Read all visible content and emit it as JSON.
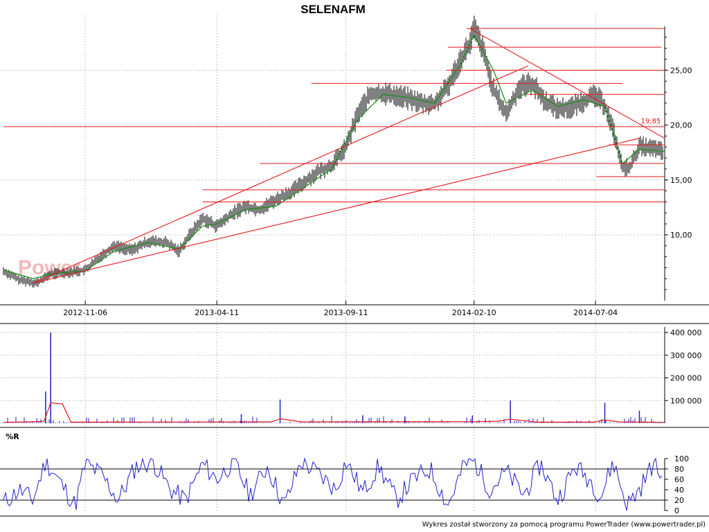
{
  "chart_data": {
    "type": "line",
    "title": "SELENAFM",
    "watermark": "Power",
    "footer": "Wykres został stworzony za pomocą programu PowerTrader (www.powertrader.pl)",
    "colors": {
      "price": "#000000",
      "moving_average": "#1a8c1a",
      "trendline": "#e8141a",
      "volume": "#1f1fbf",
      "volume_average": "#e8141a",
      "williams_r": "#1f1fcc",
      "grid": "#9a9a9a"
    },
    "price": {
      "yticks": [
        "10,00",
        "15,00",
        "20,00",
        "25,00"
      ],
      "ylim": [
        4.0,
        29.0
      ],
      "xticks": [
        "2012-11-06",
        "2013-04-11",
        "2013-09-11",
        "2014-02-10",
        "2014-07-04"
      ],
      "xlim": [
        "2012-08-01",
        "2014-09-24"
      ],
      "grid": true,
      "series": {
        "dates": [
          "2012-08-01",
          "2012-08-20",
          "2012-09-10",
          "2012-09-25",
          "2012-10-05",
          "2012-10-20",
          "2012-11-06",
          "2012-11-25",
          "2012-12-10",
          "2012-12-31",
          "2013-01-20",
          "2013-02-10",
          "2013-02-25",
          "2013-03-10",
          "2013-03-25",
          "2013-04-11",
          "2013-05-01",
          "2013-05-15",
          "2013-06-01",
          "2013-06-20",
          "2013-07-10",
          "2013-07-25",
          "2013-08-10",
          "2013-08-25",
          "2013-09-11",
          "2013-09-25",
          "2013-10-10",
          "2013-10-25",
          "2013-11-10",
          "2013-11-25",
          "2013-12-10",
          "2013-12-25",
          "2014-01-10",
          "2014-01-25",
          "2014-02-05",
          "2014-02-10",
          "2014-02-20",
          "2014-03-05",
          "2014-03-20",
          "2014-04-05",
          "2014-04-20",
          "2014-05-05",
          "2014-05-20",
          "2014-06-05",
          "2014-06-20",
          "2014-07-04",
          "2014-07-15",
          "2014-07-25",
          "2014-08-05",
          "2014-08-15",
          "2014-08-25",
          "2014-09-05",
          "2014-09-15",
          "2014-09-24"
        ],
        "values": [
          6.7,
          5.9,
          5.6,
          6.4,
          6.5,
          6.6,
          6.8,
          8.1,
          9.0,
          8.6,
          9.4,
          9.3,
          8.5,
          10.0,
          11.5,
          10.8,
          12.0,
          12.6,
          12.3,
          13.2,
          14.0,
          14.9,
          15.8,
          16.3,
          18.0,
          21.0,
          22.8,
          22.9,
          22.7,
          22.4,
          22.0,
          21.9,
          23.5,
          26.0,
          27.4,
          28.8,
          27.0,
          23.2,
          21.0,
          23.5,
          23.8,
          22.2,
          21.5,
          21.6,
          22.2,
          22.7,
          21.8,
          19.6,
          16.0,
          16.3,
          18.1,
          17.9,
          17.8,
          17.4
        ]
      },
      "moving_average_series": {
        "dates": [
          "2012-08-01",
          "2012-09-05",
          "2012-10-01",
          "2012-11-06",
          "2012-12-10",
          "2013-01-20",
          "2013-02-25",
          "2013-03-25",
          "2013-04-11",
          "2013-05-15",
          "2013-06-20",
          "2013-07-25",
          "2013-08-25",
          "2013-09-25",
          "2013-10-25",
          "2013-11-25",
          "2013-12-25",
          "2014-01-25",
          "2014-02-10",
          "2014-03-05",
          "2014-03-20",
          "2014-04-20",
          "2014-05-20",
          "2014-06-20",
          "2014-07-15",
          "2014-08-05",
          "2014-08-25",
          "2014-09-24"
        ],
        "values": [
          6.8,
          6.0,
          6.5,
          6.7,
          8.5,
          9.3,
          8.7,
          10.8,
          11.0,
          12.3,
          12.6,
          14.4,
          16.0,
          20.5,
          22.8,
          22.5,
          22.0,
          25.5,
          28.2,
          25.0,
          22.0,
          23.2,
          21.7,
          22.3,
          21.7,
          16.5,
          17.8,
          17.6
        ]
      },
      "horizontal_levels": [
        {
          "value": 28.8,
          "from": "2014-02-01",
          "to": "2014-09-24"
        },
        {
          "value": 27.1,
          "from": "2014-01-10",
          "to": "2014-09-20"
        },
        {
          "value": 25.0,
          "from": "2014-01-08",
          "to": "2014-09-24"
        },
        {
          "value": 23.8,
          "from": "2013-08-01",
          "to": "2014-08-05"
        },
        {
          "value": 22.8,
          "from": "2014-04-15",
          "to": "2014-09-24"
        },
        {
          "value": 19.85,
          "from": "2012-08-01",
          "to": "2014-09-24",
          "label": "19,85"
        },
        {
          "value": 18.2,
          "from": "2014-07-20",
          "to": "2014-09-24"
        },
        {
          "value": 16.5,
          "from": "2013-06-01",
          "to": "2014-09-24"
        },
        {
          "value": 15.3,
          "from": "2014-07-05",
          "to": "2014-09-24"
        },
        {
          "value": 14.1,
          "from": "2013-03-25",
          "to": "2014-09-24"
        },
        {
          "value": 13.0,
          "from": "2013-03-25",
          "to": "2014-09-24"
        }
      ],
      "trendlines": [
        {
          "from": [
            "2012-09-05",
            5.6
          ],
          "to": [
            "2014-04-15",
            25.4
          ]
        },
        {
          "from": [
            "2012-09-05",
            5.6
          ],
          "to": [
            "2014-08-25",
            18.8
          ]
        },
        {
          "from": [
            "2014-02-05",
            28.8
          ],
          "to": [
            "2014-09-24",
            18.8
          ]
        }
      ]
    },
    "volume": {
      "yticks": [
        "100 000",
        "200 000",
        "300 000",
        "400 000"
      ],
      "ylim": [
        0,
        400000
      ],
      "spikes": [
        {
          "date": "2012-09-20",
          "value": 140000
        },
        {
          "date": "2012-09-26",
          "value": 400000
        },
        {
          "date": "2013-05-10",
          "value": 40000
        },
        {
          "date": "2013-06-25",
          "value": 105000
        },
        {
          "date": "2013-10-01",
          "value": 35000
        },
        {
          "date": "2013-11-20",
          "value": 30000
        },
        {
          "date": "2014-02-08",
          "value": 35000
        },
        {
          "date": "2014-03-25",
          "value": 100000
        },
        {
          "date": "2014-07-15",
          "value": 90000
        },
        {
          "date": "2014-08-25",
          "value": 55000
        }
      ],
      "average_series": {
        "dates": [
          "2012-08-01",
          "2012-09-18",
          "2012-09-26",
          "2012-10-10",
          "2012-10-20",
          "2013-06-15",
          "2013-06-25",
          "2013-07-20",
          "2014-02-10",
          "2014-03-10",
          "2014-03-25",
          "2014-04-25",
          "2014-07-01",
          "2014-07-15",
          "2014-08-01",
          "2014-09-24"
        ],
        "values": [
          4000,
          8000,
          90000,
          85000,
          5000,
          6000,
          20000,
          6000,
          7000,
          9000,
          18000,
          5000,
          5000,
          14000,
          6000,
          4000
        ]
      }
    },
    "williams_r": {
      "label": "%R",
      "yticks": [
        "0",
        "20",
        "40",
        "60",
        "80",
        "100"
      ],
      "ylim": [
        0,
        100
      ],
      "reference_levels": [
        20,
        80
      ],
      "series": {
        "dates": [
          "2012-08-01",
          "2012-08-20",
          "2012-09-05",
          "2012-09-20",
          "2012-10-05",
          "2012-10-25",
          "2012-11-06",
          "2012-11-25",
          "2012-12-15",
          "2013-01-05",
          "2013-01-25",
          "2013-02-15",
          "2013-03-05",
          "2013-03-25",
          "2013-04-11",
          "2013-05-01",
          "2013-05-20",
          "2013-06-10",
          "2013-06-30",
          "2013-07-20",
          "2013-08-10",
          "2013-08-30",
          "2013-09-11",
          "2013-10-01",
          "2013-10-20",
          "2013-11-10",
          "2013-11-30",
          "2013-12-20",
          "2014-01-10",
          "2014-01-30",
          "2014-02-10",
          "2014-03-01",
          "2014-03-20",
          "2014-04-10",
          "2014-04-30",
          "2014-05-20",
          "2014-06-10",
          "2014-06-30",
          "2014-07-10",
          "2014-07-25",
          "2014-08-10",
          "2014-08-25",
          "2014-09-10",
          "2014-09-24"
        ],
        "values": [
          15,
          40,
          20,
          95,
          60,
          10,
          90,
          70,
          20,
          85,
          95,
          40,
          20,
          90,
          60,
          95,
          30,
          85,
          10,
          95,
          70,
          40,
          95,
          35,
          85,
          20,
          60,
          80,
          10,
          90,
          95,
          40,
          75,
          30,
          90,
          20,
          85,
          55,
          25,
          95,
          10,
          40,
          90,
          60
        ]
      }
    }
  }
}
